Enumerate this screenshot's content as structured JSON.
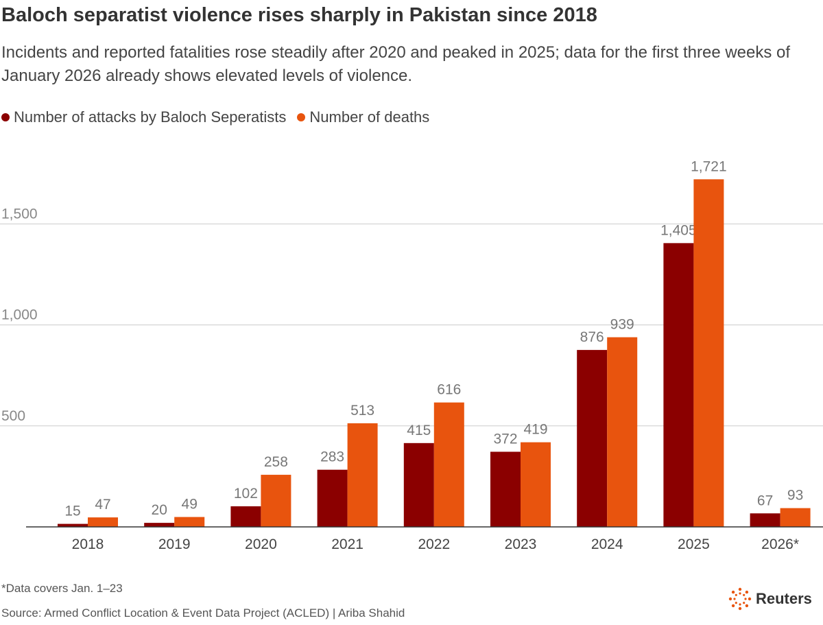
{
  "header": {
    "title": "Baloch separatist violence rises sharply in Pakistan since 2018",
    "subtitle": "Incidents and reported fatalities rose steadily after 2020 and peaked in 2025; data for the first three weeks of January 2026 already shows elevated levels of violence."
  },
  "colors": {
    "attacks": "#8b0000",
    "deaths": "#e8540e",
    "grid": "#cccccc",
    "tick_text": "#888888",
    "label_text": "#777777"
  },
  "chart_data": {
    "type": "bar",
    "categories": [
      "2018",
      "2019",
      "2020",
      "2021",
      "2022",
      "2023",
      "2024",
      "2025",
      "2026*"
    ],
    "series": [
      {
        "name": "Number of attacks by Baloch Seperatists",
        "values": [
          15,
          20,
          102,
          283,
          415,
          372,
          876,
          1405,
          67
        ],
        "labels": [
          "15",
          "20",
          "102",
          "283",
          "415",
          "372",
          "876",
          "1,405",
          "67"
        ]
      },
      {
        "name": "Number of deaths",
        "values": [
          47,
          49,
          258,
          513,
          616,
          419,
          939,
          1721,
          93
        ],
        "labels": [
          "47",
          "49",
          "258",
          "513",
          "616",
          "419",
          "939",
          "1,721",
          "93"
        ]
      }
    ],
    "yticks": [
      500,
      1000,
      1500
    ],
    "ytick_labels": [
      "500",
      "1,000",
      "1,500"
    ],
    "ylim": [
      0,
      1800
    ],
    "grid": true,
    "legend_position": "top-left"
  },
  "footer": {
    "footnote": "*Data covers Jan. 1–23",
    "source": "Source: Armed Conflict Location & Event Data Project (ACLED) | Ariba Shahid",
    "logo_text": "Reuters"
  }
}
